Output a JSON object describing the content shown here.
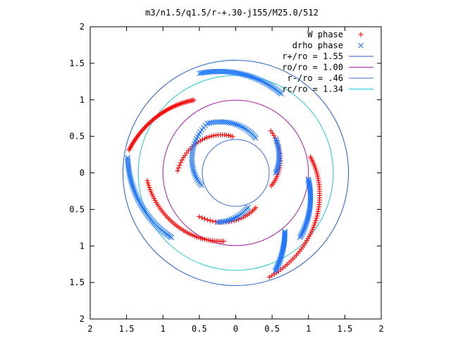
{
  "chart_data": {
    "type": "scatter",
    "title": "m3/n1.5/q1.5/r-+.30-j155/M25.0/512",
    "xlabel": "",
    "ylabel": "",
    "xlim": [
      -2,
      2
    ],
    "ylim": [
      -2,
      2
    ],
    "x_ticks": [
      -2,
      -1.5,
      -1,
      -0.5,
      0,
      0.5,
      1,
      1.5,
      2
    ],
    "y_ticks": [
      -2,
      -1.5,
      -1,
      -0.5,
      0,
      0.5,
      1,
      1.5,
      2
    ],
    "x_tick_labels": [
      "2",
      "1.5",
      "1",
      "0.5",
      "0",
      "0.5",
      "1",
      "1.5",
      "2"
    ],
    "y_tick_labels": [
      "2",
      "1.5",
      "1",
      "0.5",
      "0",
      "0.5",
      "1",
      "1.5",
      "2"
    ],
    "grid": false,
    "legend_position": "top-right",
    "series": [
      {
        "name": "W phase",
        "kind": "points",
        "marker": "+",
        "color": "#ff0000",
        "arms": [
          {
            "r_start": 1.5,
            "r_end": 1.15,
            "theta_start_deg": 168,
            "theta_end_deg": 120,
            "count": 60
          },
          {
            "r_start": 1.05,
            "r_end": 1.5,
            "theta_start_deg": 12,
            "theta_end_deg": -72,
            "count": 60
          },
          {
            "r_start": 0.95,
            "r_end": 1.22,
            "theta_start_deg": -100,
            "theta_end_deg": -175,
            "count": 50
          },
          {
            "r_start": 0.5,
            "r_end": 0.8,
            "theta_start_deg": 95,
            "theta_end_deg": 178,
            "count": 30
          },
          {
            "r_start": 0.52,
            "r_end": 0.75,
            "theta_start_deg": -20,
            "theta_end_deg": 50,
            "count": 25
          },
          {
            "r_start": 0.55,
            "r_end": 0.78,
            "theta_start_deg": -60,
            "theta_end_deg": -130,
            "count": 25
          }
        ]
      },
      {
        "name": "drho phase",
        "kind": "points",
        "marker": "x",
        "color": "#1f77ff",
        "arms": [
          {
            "r_start": 1.5,
            "r_end": 1.25,
            "theta_start_deg": 172,
            "theta_end_deg": 225,
            "count": 60
          },
          {
            "r_start": 1.25,
            "r_end": 1.45,
            "theta_start_deg": 60,
            "theta_end_deg": 110,
            "count": 55
          },
          {
            "r_start": 1.0,
            "r_end": 1.25,
            "theta_start_deg": -5,
            "theta_end_deg": -45,
            "count": 45
          },
          {
            "r_start": 1.05,
            "r_end": 1.45,
            "theta_start_deg": -50,
            "theta_end_deg": -68,
            "count": 35
          },
          {
            "r_start": 0.55,
            "r_end": 0.78,
            "theta_start_deg": 60,
            "theta_end_deg": 120,
            "count": 30
          },
          {
            "r_start": 0.5,
            "r_end": 0.78,
            "theta_start_deg": -160,
            "theta_end_deg": -240,
            "count": 30
          },
          {
            "r_start": 0.5,
            "r_end": 0.72,
            "theta_start_deg": -70,
            "theta_end_deg": -110,
            "count": 20
          },
          {
            "r_start": 0.55,
            "r_end": 0.72,
            "theta_start_deg": 0,
            "theta_end_deg": 40,
            "count": 20
          }
        ]
      },
      {
        "name": "r+/ro = 1.55",
        "kind": "circle",
        "radius": 1.55,
        "color": "#1f5fbf"
      },
      {
        "name": "ro/ro = 1.00",
        "kind": "circle",
        "radius": 1.0,
        "color": "#a020a0"
      },
      {
        "name": "r-/ro = .46",
        "kind": "circle",
        "radius": 0.46,
        "color": "#3a6fd0"
      },
      {
        "name": "rc/ro = 1.34",
        "kind": "circle",
        "radius": 1.34,
        "color": "#20c8d0"
      }
    ]
  }
}
